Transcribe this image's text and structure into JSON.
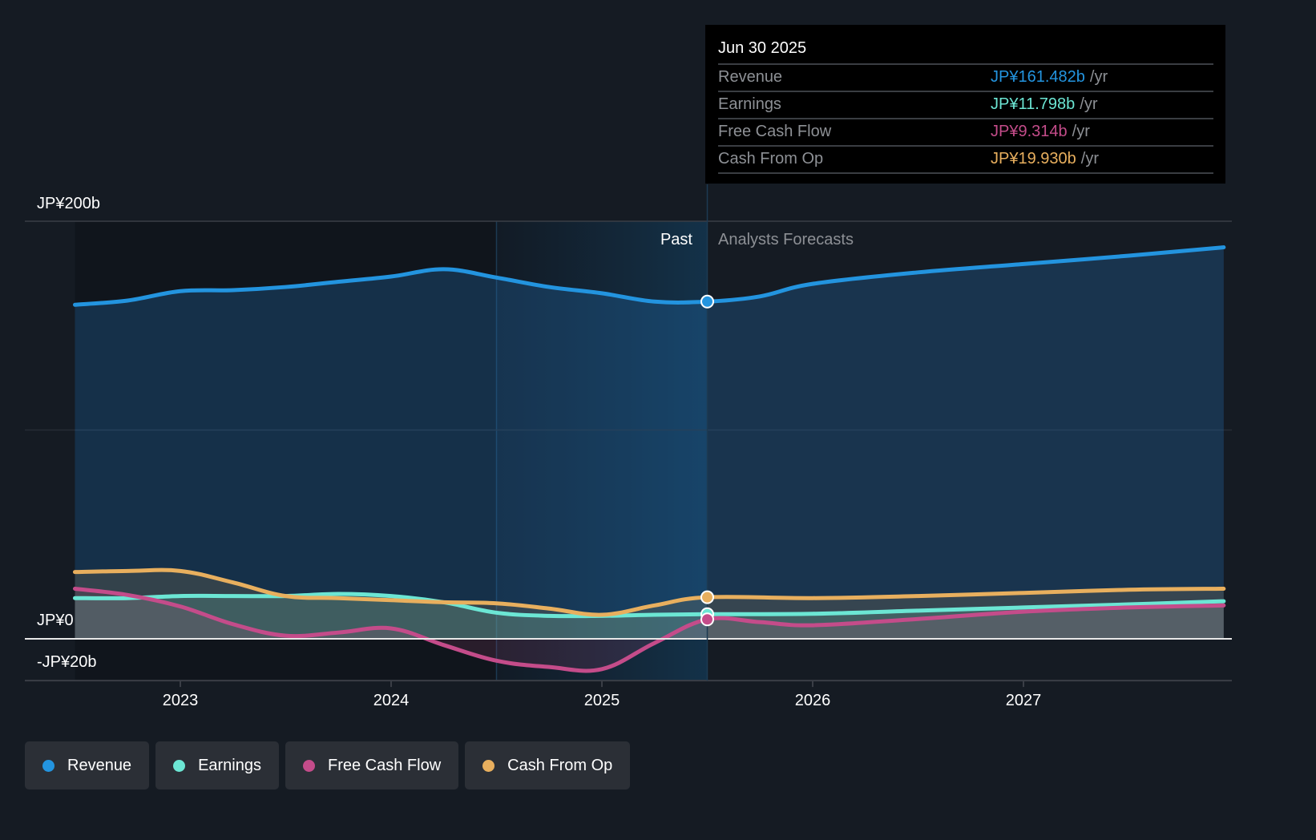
{
  "tooltip": {
    "date": "Jun 30 2025",
    "rows": [
      {
        "label": "Revenue",
        "value": "JP¥161.482b",
        "unit": "/yr",
        "color": "#2394df"
      },
      {
        "label": "Earnings",
        "value": "JP¥11.798b",
        "unit": "/yr",
        "color": "#6ce6d4"
      },
      {
        "label": "Free Cash Flow",
        "value": "JP¥9.314b",
        "unit": "/yr",
        "color": "#c44c8a"
      },
      {
        "label": "Cash From Op",
        "value": "JP¥19.930b",
        "unit": "/yr",
        "color": "#e8af5e"
      }
    ]
  },
  "sections": {
    "past": "Past",
    "forecast": "Analysts Forecasts"
  },
  "legend": [
    {
      "label": "Revenue",
      "color": "#2394df"
    },
    {
      "label": "Earnings",
      "color": "#6ce6d4"
    },
    {
      "label": "Free Cash Flow",
      "color": "#c44c8a"
    },
    {
      "label": "Cash From Op",
      "color": "#e8af5e"
    }
  ],
  "chart_data": {
    "type": "line",
    "title": "",
    "xlabel": "",
    "ylabel": "",
    "x_range": [
      2022.5,
      2027.95
    ],
    "ylim": [
      -20,
      200
    ],
    "y_ticks": [
      {
        "value": 200,
        "label": "JP¥200b"
      },
      {
        "value": 0,
        "label": "JP¥0"
      },
      {
        "value": -20,
        "label": "-JP¥20b"
      }
    ],
    "x_ticks": [
      {
        "value": 2023,
        "label": "2023"
      },
      {
        "value": 2024,
        "label": "2024"
      },
      {
        "value": 2025,
        "label": "2025"
      },
      {
        "value": 2026,
        "label": "2026"
      },
      {
        "value": 2027,
        "label": "2027"
      }
    ],
    "past_highlight_start": 2024.5,
    "forecast_start": 2025.5,
    "grid": true,
    "legend_position": "bottom-left",
    "series": [
      {
        "name": "Revenue",
        "color": "#2394df",
        "x": [
          2022.5,
          2022.75,
          2023.0,
          2023.25,
          2023.5,
          2023.75,
          2024.0,
          2024.25,
          2024.5,
          2024.75,
          2025.0,
          2025.25,
          2025.5,
          2025.75,
          2026.0,
          2026.5,
          2027.0,
          2027.5,
          2027.95
        ],
        "values": [
          160,
          162,
          166.5,
          167,
          168.5,
          171,
          173.5,
          177,
          173,
          168.5,
          165.5,
          161.5,
          161.5,
          164,
          170,
          175.5,
          179.5,
          183.5,
          187.5
        ]
      },
      {
        "name": "Earnings",
        "color": "#6ce6d4",
        "x": [
          2022.5,
          2022.75,
          2023.0,
          2023.25,
          2023.5,
          2023.75,
          2024.0,
          2024.25,
          2024.5,
          2024.75,
          2025.0,
          2025.25,
          2025.5,
          2026.0,
          2026.5,
          2027.0,
          2027.5,
          2027.95
        ],
        "values": [
          19.5,
          19.5,
          20.5,
          20.5,
          20.5,
          21.5,
          20.5,
          17.5,
          12.5,
          11,
          11,
          11.5,
          11.8,
          12,
          13.5,
          15,
          16.5,
          18
        ]
      },
      {
        "name": "Free Cash Flow",
        "color": "#c44c8a",
        "x": [
          2022.5,
          2022.75,
          2023.0,
          2023.25,
          2023.5,
          2023.75,
          2024.0,
          2024.25,
          2024.5,
          2024.75,
          2025.0,
          2025.25,
          2025.5,
          2025.75,
          2026.0,
          2026.5,
          2027.0,
          2027.5,
          2027.95
        ],
        "values": [
          24,
          21,
          15.5,
          7,
          1.5,
          3,
          5,
          -3,
          -10.5,
          -13.5,
          -14.5,
          -2,
          9.3,
          8,
          6.5,
          9.5,
          13,
          15,
          16
        ]
      },
      {
        "name": "Cash From Op",
        "color": "#e8af5e",
        "x": [
          2022.5,
          2022.75,
          2023.0,
          2023.25,
          2023.5,
          2023.75,
          2024.0,
          2024.25,
          2024.5,
          2024.75,
          2025.0,
          2025.25,
          2025.5,
          2026.0,
          2026.5,
          2027.0,
          2027.5,
          2027.95
        ],
        "values": [
          32,
          32.5,
          32.5,
          27,
          20.5,
          19.5,
          18.5,
          17.5,
          17,
          14.5,
          11.5,
          16,
          19.9,
          19.5,
          20.5,
          22,
          23.5,
          24
        ]
      }
    ],
    "highlight_point": {
      "x": 2025.5,
      "label": "Jun 30 2025"
    }
  }
}
